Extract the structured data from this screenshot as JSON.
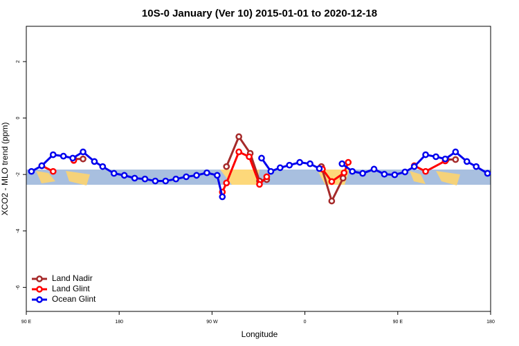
{
  "chart_data": {
    "type": "line",
    "title": "10S-0 January (Ver 10)   2015-01-01 to 2020-12-18",
    "x_label": "Longitude",
    "y_label": "XCO2 - MLO trend (ppm)",
    "xlim": [
      90,
      540
    ],
    "ylim": [
      -6.85,
      3.25
    ],
    "xticks": [
      {
        "value": 90,
        "label": "90 E"
      },
      180,
      {
        "value": 270,
        "label": "90 W"
      },
      {
        "value": 360,
        "label": "0"
      },
      {
        "value": 450,
        "label": "90 E"
      },
      {
        "value": 540,
        "label": "180"
      }
    ],
    "yticks": [
      -6,
      -4,
      -2,
      0,
      2
    ],
    "legend": "bottom-left",
    "series": [
      {
        "name": "Land Nadir",
        "color": "#a52a2a",
        "x": [
          136,
          145,
          null,
          284,
          296,
          307,
          316,
          323,
          null,
          376,
          386,
          397,
          null,
          497,
          506
        ],
        "values": [
          -1.45,
          -1.45,
          null,
          -1.72,
          -0.66,
          -1.25,
          -2.23,
          -2.18,
          null,
          -1.72,
          -2.94,
          -2.13,
          null,
          -1.47,
          -1.47
        ]
      },
      {
        "name": "Land Glint",
        "color": "#ff0000",
        "x": [
          105,
          116,
          null,
          136,
          null,
          280,
          284,
          296,
          306,
          316,
          323,
          null,
          377,
          386,
          398,
          402,
          null,
          466,
          477,
          496
        ],
        "values": [
          -1.69,
          -1.89,
          null,
          -1.5,
          null,
          -2.62,
          -2.3,
          -1.2,
          -1.37,
          -2.35,
          -2.08,
          null,
          -1.81,
          -2.25,
          -1.94,
          -1.57,
          null,
          -1.69,
          -1.89,
          -1.52
        ]
      },
      {
        "name": "Ocean Glint",
        "color": "#0000ee",
        "x": [
          95,
          105,
          116,
          126,
          135,
          145,
          156,
          164,
          175,
          185,
          195,
          205,
          215,
          225,
          235,
          245,
          255,
          265,
          275,
          280,
          null,
          318,
          327,
          336,
          345,
          355,
          365,
          374,
          null,
          396,
          406,
          416,
          427,
          437,
          447,
          457,
          466,
          477,
          487,
          496,
          506,
          517,
          526,
          537
        ],
        "values": [
          -1.89,
          -1.69,
          -1.3,
          -1.35,
          -1.42,
          -1.2,
          -1.54,
          -1.72,
          -1.96,
          -2.03,
          -2.13,
          -2.16,
          -2.23,
          -2.23,
          -2.16,
          -2.08,
          -2.03,
          -1.94,
          -2.03,
          -2.79,
          null,
          -1.42,
          -1.89,
          -1.76,
          -1.67,
          -1.57,
          -1.62,
          -1.79,
          null,
          -1.62,
          -1.89,
          -1.96,
          -1.81,
          -1.99,
          -2.01,
          -1.91,
          -1.72,
          -1.3,
          -1.37,
          -1.45,
          -1.2,
          -1.54,
          -1.72,
          -1.96
        ]
      }
    ]
  }
}
